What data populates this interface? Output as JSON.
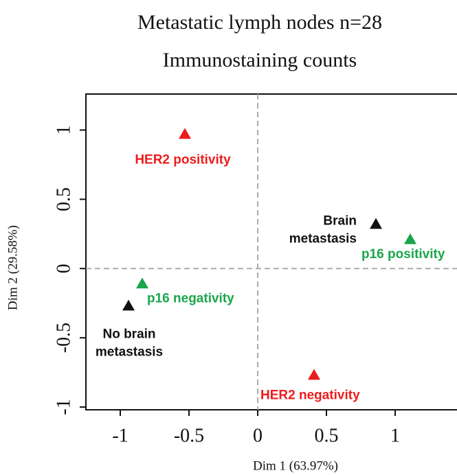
{
  "chart_data": {
    "type": "scatter",
    "title": "Metastatic lymph nodes n=28",
    "subtitle": "Immunostaining counts",
    "x_label": "Dim 1 (63.97%)",
    "y_label": "Dim 2 (29.58%)",
    "xlim": [
      -1.25,
      1.45
    ],
    "ylim": [
      -1.02,
      1.26
    ],
    "xticks": [
      -1.0,
      -0.5,
      0.0,
      0.5,
      1.0
    ],
    "yticks": [
      -1.0,
      -0.5,
      0.0,
      0.5,
      1.0
    ],
    "series": [
      {
        "label": [
          "HER2 positivity"
        ],
        "color": "#ee1c1c",
        "x": [
          -0.53
        ],
        "values": [
          0.97
        ]
      },
      {
        "label": [
          "Brain",
          "metastasis"
        ],
        "color": "#111111",
        "x": [
          0.86
        ],
        "values": [
          0.32
        ]
      },
      {
        "label": [
          "p16 positivity"
        ],
        "color": "#1aa64a",
        "x": [
          1.11
        ],
        "values": [
          0.21
        ]
      },
      {
        "label": [
          "p16 negativity"
        ],
        "color": "#1aa64a",
        "x": [
          -0.84
        ],
        "values": [
          -0.11
        ]
      },
      {
        "label": [
          "No brain",
          "metastasis"
        ],
        "color": "#111111",
        "x": [
          -0.94
        ],
        "values": [
          -0.27
        ]
      },
      {
        "label": [
          "HER2 negativity"
        ],
        "color": "#ee1c1c",
        "x": [
          0.41
        ],
        "values": [
          -0.77
        ]
      }
    ]
  }
}
